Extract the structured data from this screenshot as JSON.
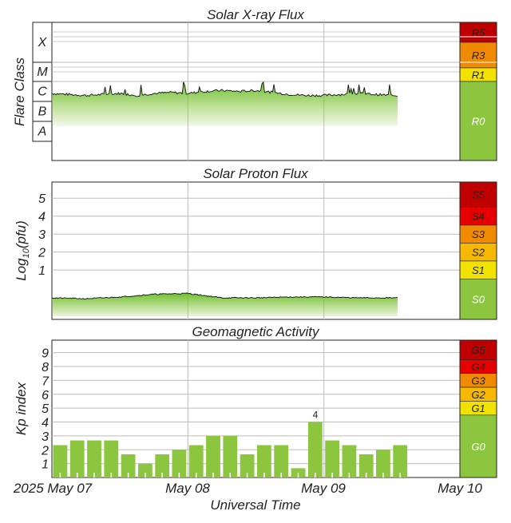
{
  "colors": {
    "bar": "#8cc63f",
    "line": "#111111",
    "grid": "#bdbdbd",
    "frame": "#222222",
    "level_green": "#8cc63f",
    "level_yellow": "#f2e200",
    "level_amber": "#f6b800",
    "level_orange": "#f08a00",
    "level_red": "#e60000",
    "level_darkred": "#c00000"
  },
  "x_axis": {
    "label": "Universal Time",
    "ticks": [
      "2025 May 07",
      "May 08",
      "May 09",
      "May 10"
    ]
  },
  "chart_data": [
    {
      "type": "area",
      "title": "Solar X-ray Flux",
      "ylabel": "Flare Class",
      "ytick_labels": [
        "X",
        "M",
        "C",
        "B",
        "A"
      ],
      "scale": [
        "R5",
        "R3",
        "R1",
        "R0"
      ],
      "x_range": [
        "2025-05-07",
        "2025-05-10"
      ],
      "data_end": "2025-05-09T13:00",
      "series": [
        {
          "x": [
            "05-07 00:00",
            "05-07 03:00",
            "05-07 06:00",
            "05-07 09:00",
            "05-07 12:00",
            "05-07 15:00",
            "05-07 18:00",
            "05-07 21:00",
            "05-08 00:00",
            "05-08 03:00",
            "05-08 06:00",
            "05-08 09:00",
            "05-08 12:00",
            "05-08 15:00",
            "05-08 18:00",
            "05-08 21:00",
            "05-09 00:00",
            "05-09 03:00",
            "05-09 06:00",
            "05-09 09:00",
            "05-09 12:00"
          ],
          "class_level": [
            3.4,
            3.35,
            3.3,
            3.35,
            3.4,
            3.3,
            3.4,
            3.45,
            3.4,
            3.5,
            3.55,
            3.5,
            3.55,
            3.45,
            3.35,
            3.3,
            3.3,
            3.35,
            3.4,
            3.35,
            3.3
          ]
        }
      ]
    },
    {
      "type": "area",
      "title": "Solar Proton Flux",
      "ylabel": "Log10(pfu)",
      "ylabel_main": "Log",
      "ylabel_sub": "10",
      "ylabel_tail": "(pfu)",
      "yticks": [
        "1",
        "2",
        "3",
        "4",
        "5"
      ],
      "scale": [
        "S5",
        "S4",
        "S3",
        "S2",
        "S1",
        "S0"
      ],
      "ylim": [
        -1.75,
        5.9
      ],
      "x_range": [
        "2025-05-07",
        "2025-05-10"
      ],
      "data_end": "2025-05-09T13:00",
      "series": [
        {
          "x": [
            "05-07 00:00",
            "05-07 06:00",
            "05-07 12:00",
            "05-07 18:00",
            "05-08 00:00",
            "05-08 06:00",
            "05-08 12:00",
            "05-08 18:00",
            "05-09 00:00",
            "05-09 06:00",
            "05-09 12:00"
          ],
          "log_pfu": [
            -0.55,
            -0.6,
            -0.5,
            -0.35,
            -0.3,
            -0.55,
            -0.55,
            -0.5,
            -0.5,
            -0.55,
            -0.55
          ]
        }
      ]
    },
    {
      "type": "bar",
      "title": "Geomagnetic Activity",
      "ylabel": "Kp index",
      "yticks": [
        "1",
        "2",
        "3",
        "4",
        "5",
        "6",
        "7",
        "8",
        "9"
      ],
      "ylim": [
        0,
        9.9
      ],
      "scale": [
        "G5",
        "G4",
        "G3",
        "G2",
        "G1",
        "G0"
      ],
      "x_range": [
        "2025-05-07",
        "2025-05-10"
      ],
      "bar_period_hours": 3,
      "values": [
        2.33,
        2.67,
        2.67,
        2.67,
        1.67,
        1.0,
        1.67,
        2.0,
        2.33,
        3.0,
        3.0,
        1.67,
        2.33,
        2.33,
        0.67,
        4.0,
        2.67,
        2.33,
        1.67,
        2.0,
        2.33
      ],
      "annotations": [
        {
          "index": 15,
          "text": "4"
        }
      ]
    }
  ]
}
